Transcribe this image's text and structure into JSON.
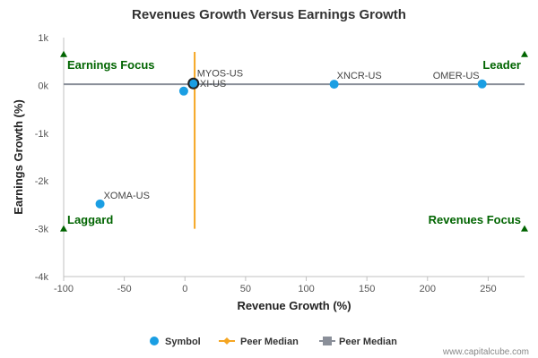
{
  "chart_data": {
    "type": "scatter",
    "title": "Revenues Growth Versus Earnings Growth",
    "xlabel": "Revenue Growth (%)",
    "ylabel": "Earnings Growth (%)",
    "xlim": [
      -100,
      280
    ],
    "ylim": [
      -4000,
      1000
    ],
    "x_ticks": [
      -100,
      -50,
      0,
      50,
      100,
      150,
      200,
      250
    ],
    "y_ticks": [
      {
        "value": 1000,
        "label": "1k"
      },
      {
        "value": 0,
        "label": "0k"
      },
      {
        "value": -1000,
        "label": "-1k"
      },
      {
        "value": -2000,
        "label": "-2k"
      },
      {
        "value": -3000,
        "label": "-3k"
      },
      {
        "value": -4000,
        "label": "-4k"
      }
    ],
    "grid": false,
    "series": [
      {
        "name": "Symbol",
        "color": "#1a9ee3",
        "points": [
          {
            "label": "MYOS-US",
            "x": 7,
            "y": 40,
            "highlighted": true
          },
          {
            "label": "XI-US",
            "x": -1,
            "y": -120
          },
          {
            "label": "XNCR-US",
            "x": 123,
            "y": 25
          },
          {
            "label": "OMER-US",
            "x": 245,
            "y": 30
          },
          {
            "label": "XOMA-US",
            "x": -70,
            "y": -2480
          }
        ]
      },
      {
        "name": "Peer Median",
        "color": "#f5a623",
        "orientation": "vertical",
        "value": 8
      },
      {
        "name": "Peer Median",
        "color": "#8a8f99",
        "orientation": "horizontal",
        "value": 25
      }
    ],
    "quadrants": [
      {
        "label": "Earnings Focus",
        "position": "top-left"
      },
      {
        "label": "Leader",
        "position": "top-right"
      },
      {
        "label": "Laggard",
        "position": "bottom-left"
      },
      {
        "label": "Revenues Focus",
        "position": "bottom-right"
      }
    ],
    "quadrant_color": "#006400",
    "legend_position": "bottom"
  },
  "credit": "www.capitalcube.com"
}
